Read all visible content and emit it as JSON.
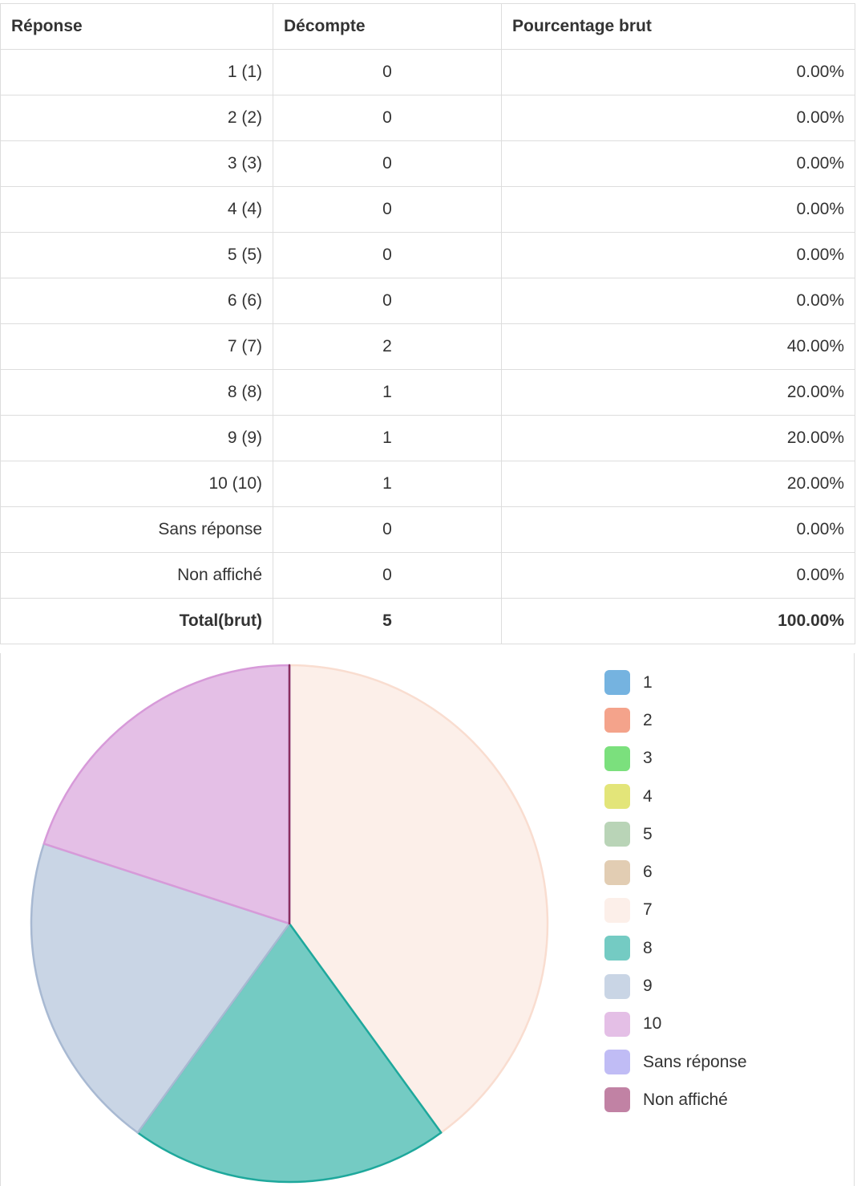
{
  "table": {
    "headers": [
      "Réponse",
      "Décompte",
      "Pourcentage brut"
    ],
    "rows": [
      {
        "label": "1 (1)",
        "count": "0",
        "percent": "0.00%"
      },
      {
        "label": "2 (2)",
        "count": "0",
        "percent": "0.00%"
      },
      {
        "label": "3 (3)",
        "count": "0",
        "percent": "0.00%"
      },
      {
        "label": "4 (4)",
        "count": "0",
        "percent": "0.00%"
      },
      {
        "label": "5 (5)",
        "count": "0",
        "percent": "0.00%"
      },
      {
        "label": "6 (6)",
        "count": "0",
        "percent": "0.00%"
      },
      {
        "label": "7 (7)",
        "count": "2",
        "percent": "40.00%"
      },
      {
        "label": "8 (8)",
        "count": "1",
        "percent": "20.00%"
      },
      {
        "label": "9 (9)",
        "count": "1",
        "percent": "20.00%"
      },
      {
        "label": "10 (10)",
        "count": "1",
        "percent": "20.00%"
      },
      {
        "label": "Sans réponse",
        "count": "0",
        "percent": "0.00%"
      },
      {
        "label": "Non affiché",
        "count": "0",
        "percent": "0.00%"
      }
    ],
    "total": {
      "label": "Total(brut)",
      "count": "5",
      "percent": "100.00%"
    }
  },
  "chart_data": {
    "type": "pie",
    "categories": [
      "1",
      "2",
      "3",
      "4",
      "5",
      "6",
      "7",
      "8",
      "9",
      "10",
      "Sans réponse",
      "Non affiché"
    ],
    "values": [
      0,
      0,
      0,
      0,
      0,
      0,
      2,
      1,
      1,
      1,
      0,
      0
    ],
    "colors": [
      "#75b3e0",
      "#f4a38b",
      "#7be07d",
      "#e3e579",
      "#b9d4b7",
      "#e2cdb3",
      "#fcefe9",
      "#74cbc3",
      "#c9d5e5",
      "#e4bfe6",
      "#c0bcf5",
      "#c182a4"
    ],
    "border_colors": [
      "#5b9cce",
      "#e8866a",
      "#5ccb5f",
      "#cfd155",
      "#9fbf9c",
      "#cfb693",
      "#f9ddd0",
      "#1ea89c",
      "#a8b9d2",
      "#d79ad9",
      "#a39ef0",
      "#8a2f5e"
    ],
    "legend": "right"
  }
}
